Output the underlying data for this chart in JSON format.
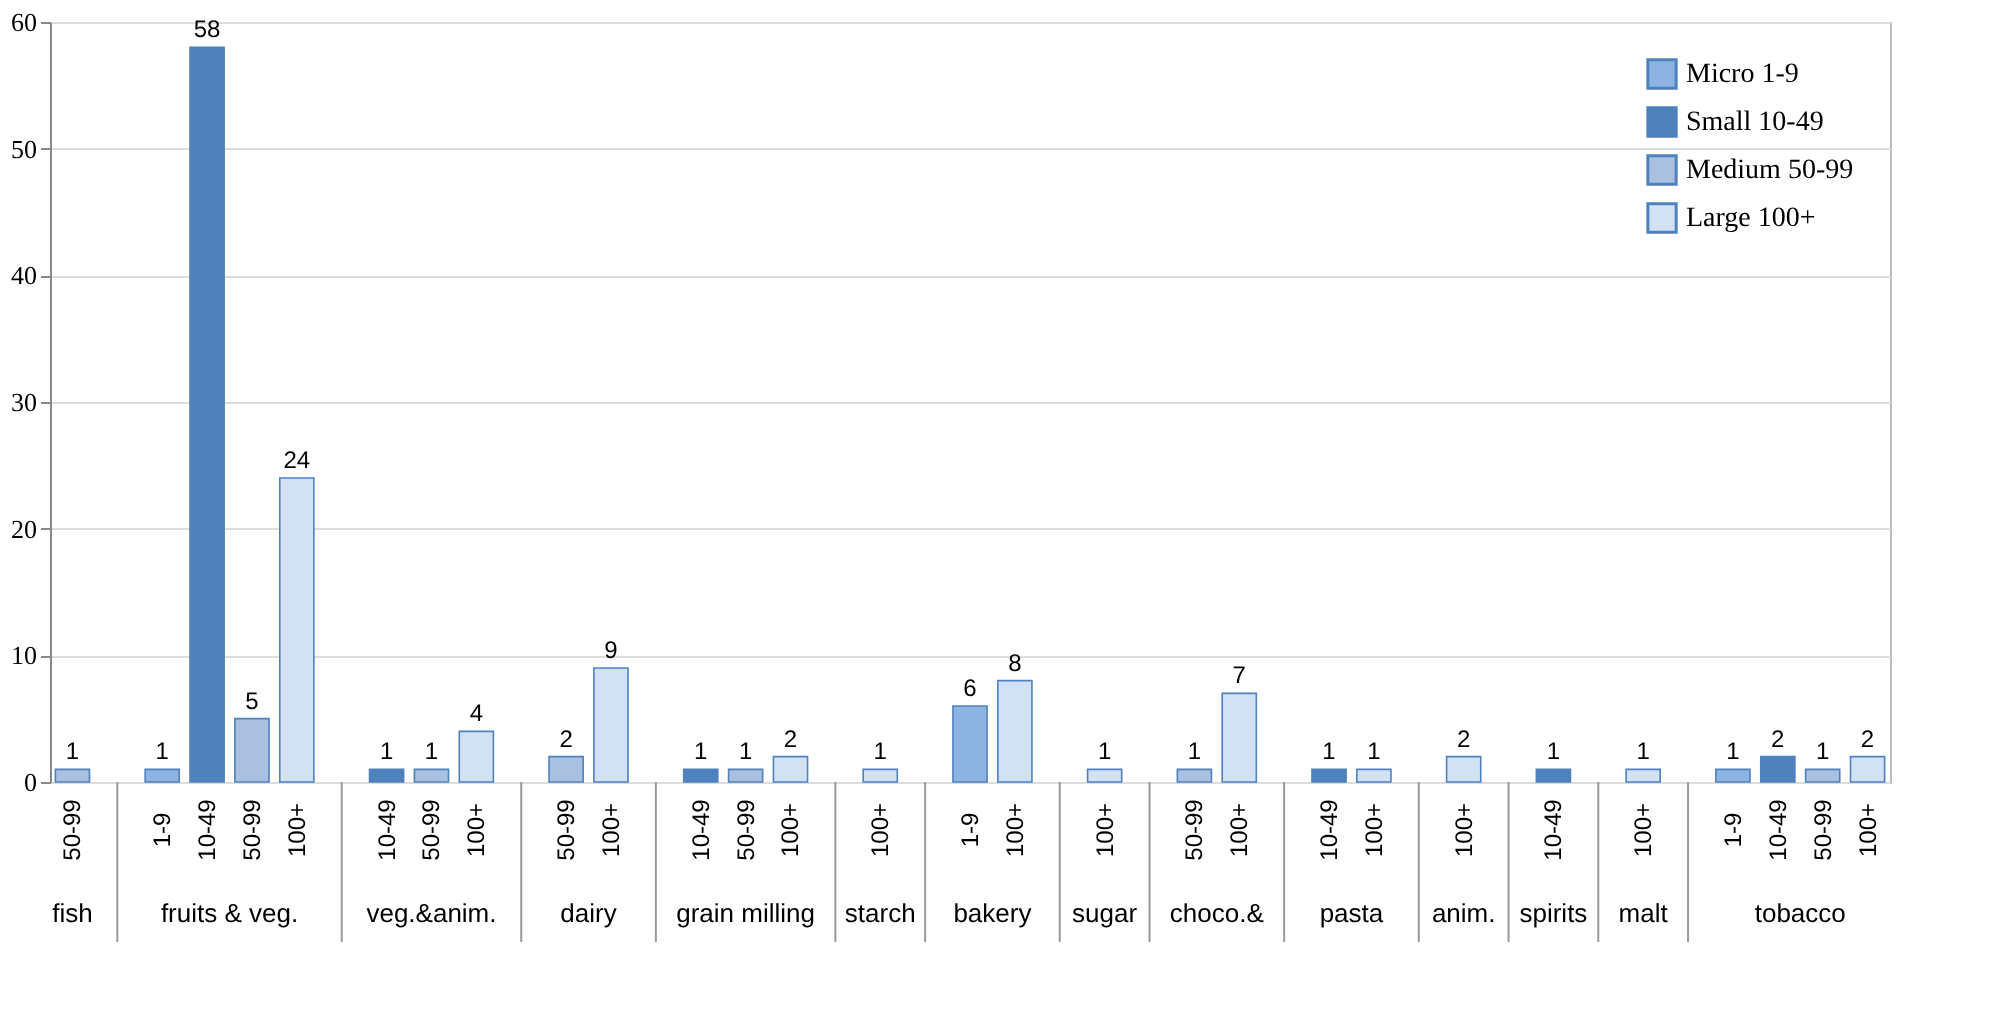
{
  "chart_data": {
    "type": "bar",
    "categories": [
      "50-99",
      null,
      "1-9",
      "10-49",
      "50-99",
      "100+",
      null,
      "10-49",
      "50-99",
      "100+",
      null,
      "50-99",
      "100+",
      null,
      "10-49",
      "50-99",
      "100+",
      null,
      "100+",
      null,
      "1-9",
      "100+",
      null,
      "100+",
      null,
      "50-99",
      "100+",
      null,
      "10-49",
      "100+",
      null,
      "100+",
      null,
      "10-49",
      null,
      "100+",
      null,
      "1-9",
      "10-49",
      "50-99",
      "100+"
    ],
    "series": [
      {
        "name": "Micro 1-9",
        "color": "#8db3e2",
        "values": [
          null,
          null,
          1,
          null,
          null,
          null,
          null,
          null,
          null,
          null,
          null,
          null,
          null,
          null,
          null,
          null,
          null,
          null,
          null,
          null,
          6,
          null,
          null,
          null,
          null,
          null,
          null,
          null,
          null,
          null,
          null,
          null,
          null,
          null,
          null,
          null,
          null,
          1,
          null,
          null,
          null
        ]
      },
      {
        "name": "Small 10-49",
        "color": "#4f81bd",
        "values": [
          null,
          null,
          null,
          58,
          null,
          null,
          null,
          1,
          null,
          null,
          null,
          null,
          null,
          null,
          1,
          null,
          null,
          null,
          null,
          null,
          null,
          null,
          null,
          null,
          null,
          null,
          null,
          null,
          1,
          null,
          null,
          null,
          null,
          1,
          null,
          null,
          null,
          null,
          2,
          null,
          null
        ]
      },
      {
        "name": "Medium 50-99",
        "color": "#a9c0e0",
        "values": [
          1,
          null,
          null,
          null,
          5,
          null,
          null,
          null,
          1,
          null,
          null,
          2,
          null,
          null,
          null,
          1,
          null,
          null,
          null,
          null,
          null,
          null,
          null,
          null,
          null,
          1,
          null,
          null,
          null,
          null,
          null,
          null,
          null,
          null,
          null,
          null,
          null,
          null,
          null,
          1,
          null
        ]
      },
      {
        "name": "Large 100+",
        "color": "#d3e1f4",
        "values": [
          null,
          null,
          null,
          null,
          null,
          24,
          null,
          null,
          null,
          4,
          null,
          null,
          9,
          null,
          null,
          null,
          2,
          null,
          1,
          null,
          null,
          8,
          null,
          1,
          null,
          null,
          7,
          null,
          null,
          1,
          null,
          2,
          null,
          null,
          null,
          1,
          null,
          null,
          null,
          null,
          2
        ]
      }
    ],
    "annotations": [
      "fish",
      "fruits & veg.",
      "veg.&anim.",
      "dairy",
      "grain milling",
      "starch",
      "bakery",
      "sugar",
      "choco.&",
      "pasta",
      "anim.",
      "spirits",
      "malt",
      "tobacco"
    ],
    "ylim": [
      0,
      60
    ],
    "yticks": [
      0,
      10,
      20,
      30,
      40,
      50,
      60
    ],
    "grid": "y",
    "legend": "top right",
    "data_labels": true
  }
}
